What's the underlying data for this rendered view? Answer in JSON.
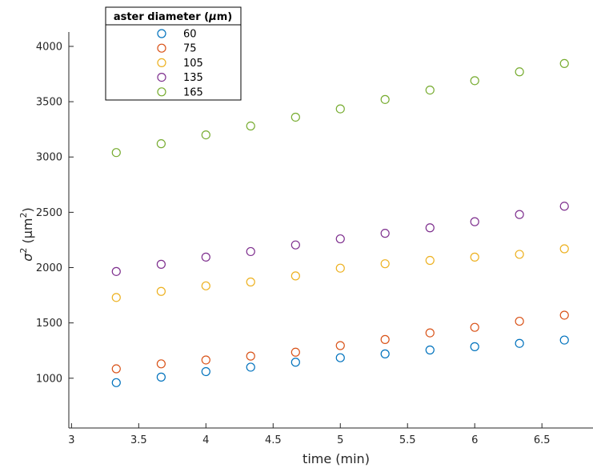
{
  "chart_data": {
    "type": "scatter",
    "xlabel": "time (min)",
    "ylabel_prefix": "σ",
    "ylabel_suffix": " (μm",
    "ylabel_sup": "2",
    "ylabel_close": ")",
    "xlim": [
      2.98,
      6.88
    ],
    "ylim": [
      550,
      4130
    ],
    "xticks": [
      3,
      3.5,
      4,
      4.5,
      5,
      5.5,
      6,
      6.5
    ],
    "xtick_labels": [
      "3",
      "3.5",
      "4",
      "4.5",
      "5",
      "5.5",
      "6",
      "6.5"
    ],
    "yticks": [
      1000,
      1500,
      2000,
      2500,
      3000,
      3500,
      4000
    ],
    "ytick_labels": [
      "1000",
      "1500",
      "2000",
      "2500",
      "3000",
      "3500",
      "4000"
    ],
    "grid": false,
    "legend": {
      "title_prefix": "aster diameter (",
      "title_mu": "μ",
      "title_suffix": "m)",
      "placement": "top-left"
    },
    "x": [
      3.333,
      3.667,
      4.0,
      4.333,
      4.667,
      5.0,
      5.333,
      5.667,
      6.0,
      6.333,
      6.667
    ],
    "series": [
      {
        "name": "60",
        "color": "#0072BD",
        "values": [
          960,
          1010,
          1060,
          1100,
          1145,
          1185,
          1220,
          1255,
          1285,
          1315,
          1345
        ]
      },
      {
        "name": "75",
        "color": "#D95319",
        "values": [
          1085,
          1130,
          1165,
          1200,
          1235,
          1295,
          1350,
          1410,
          1460,
          1515,
          1570
        ]
      },
      {
        "name": "105",
        "color": "#EDB120",
        "values": [
          1730,
          1785,
          1835,
          1870,
          1925,
          1995,
          2035,
          2065,
          2095,
          2120,
          2170
        ]
      },
      {
        "name": "135",
        "color": "#7E2F8E",
        "values": [
          1965,
          2030,
          2095,
          2145,
          2205,
          2260,
          2310,
          2360,
          2415,
          2480,
          2555
        ]
      },
      {
        "name": "165",
        "color": "#77AC30",
        "values": [
          3040,
          3120,
          3200,
          3280,
          3360,
          3435,
          3520,
          3605,
          3690,
          3770,
          3845
        ]
      }
    ]
  }
}
